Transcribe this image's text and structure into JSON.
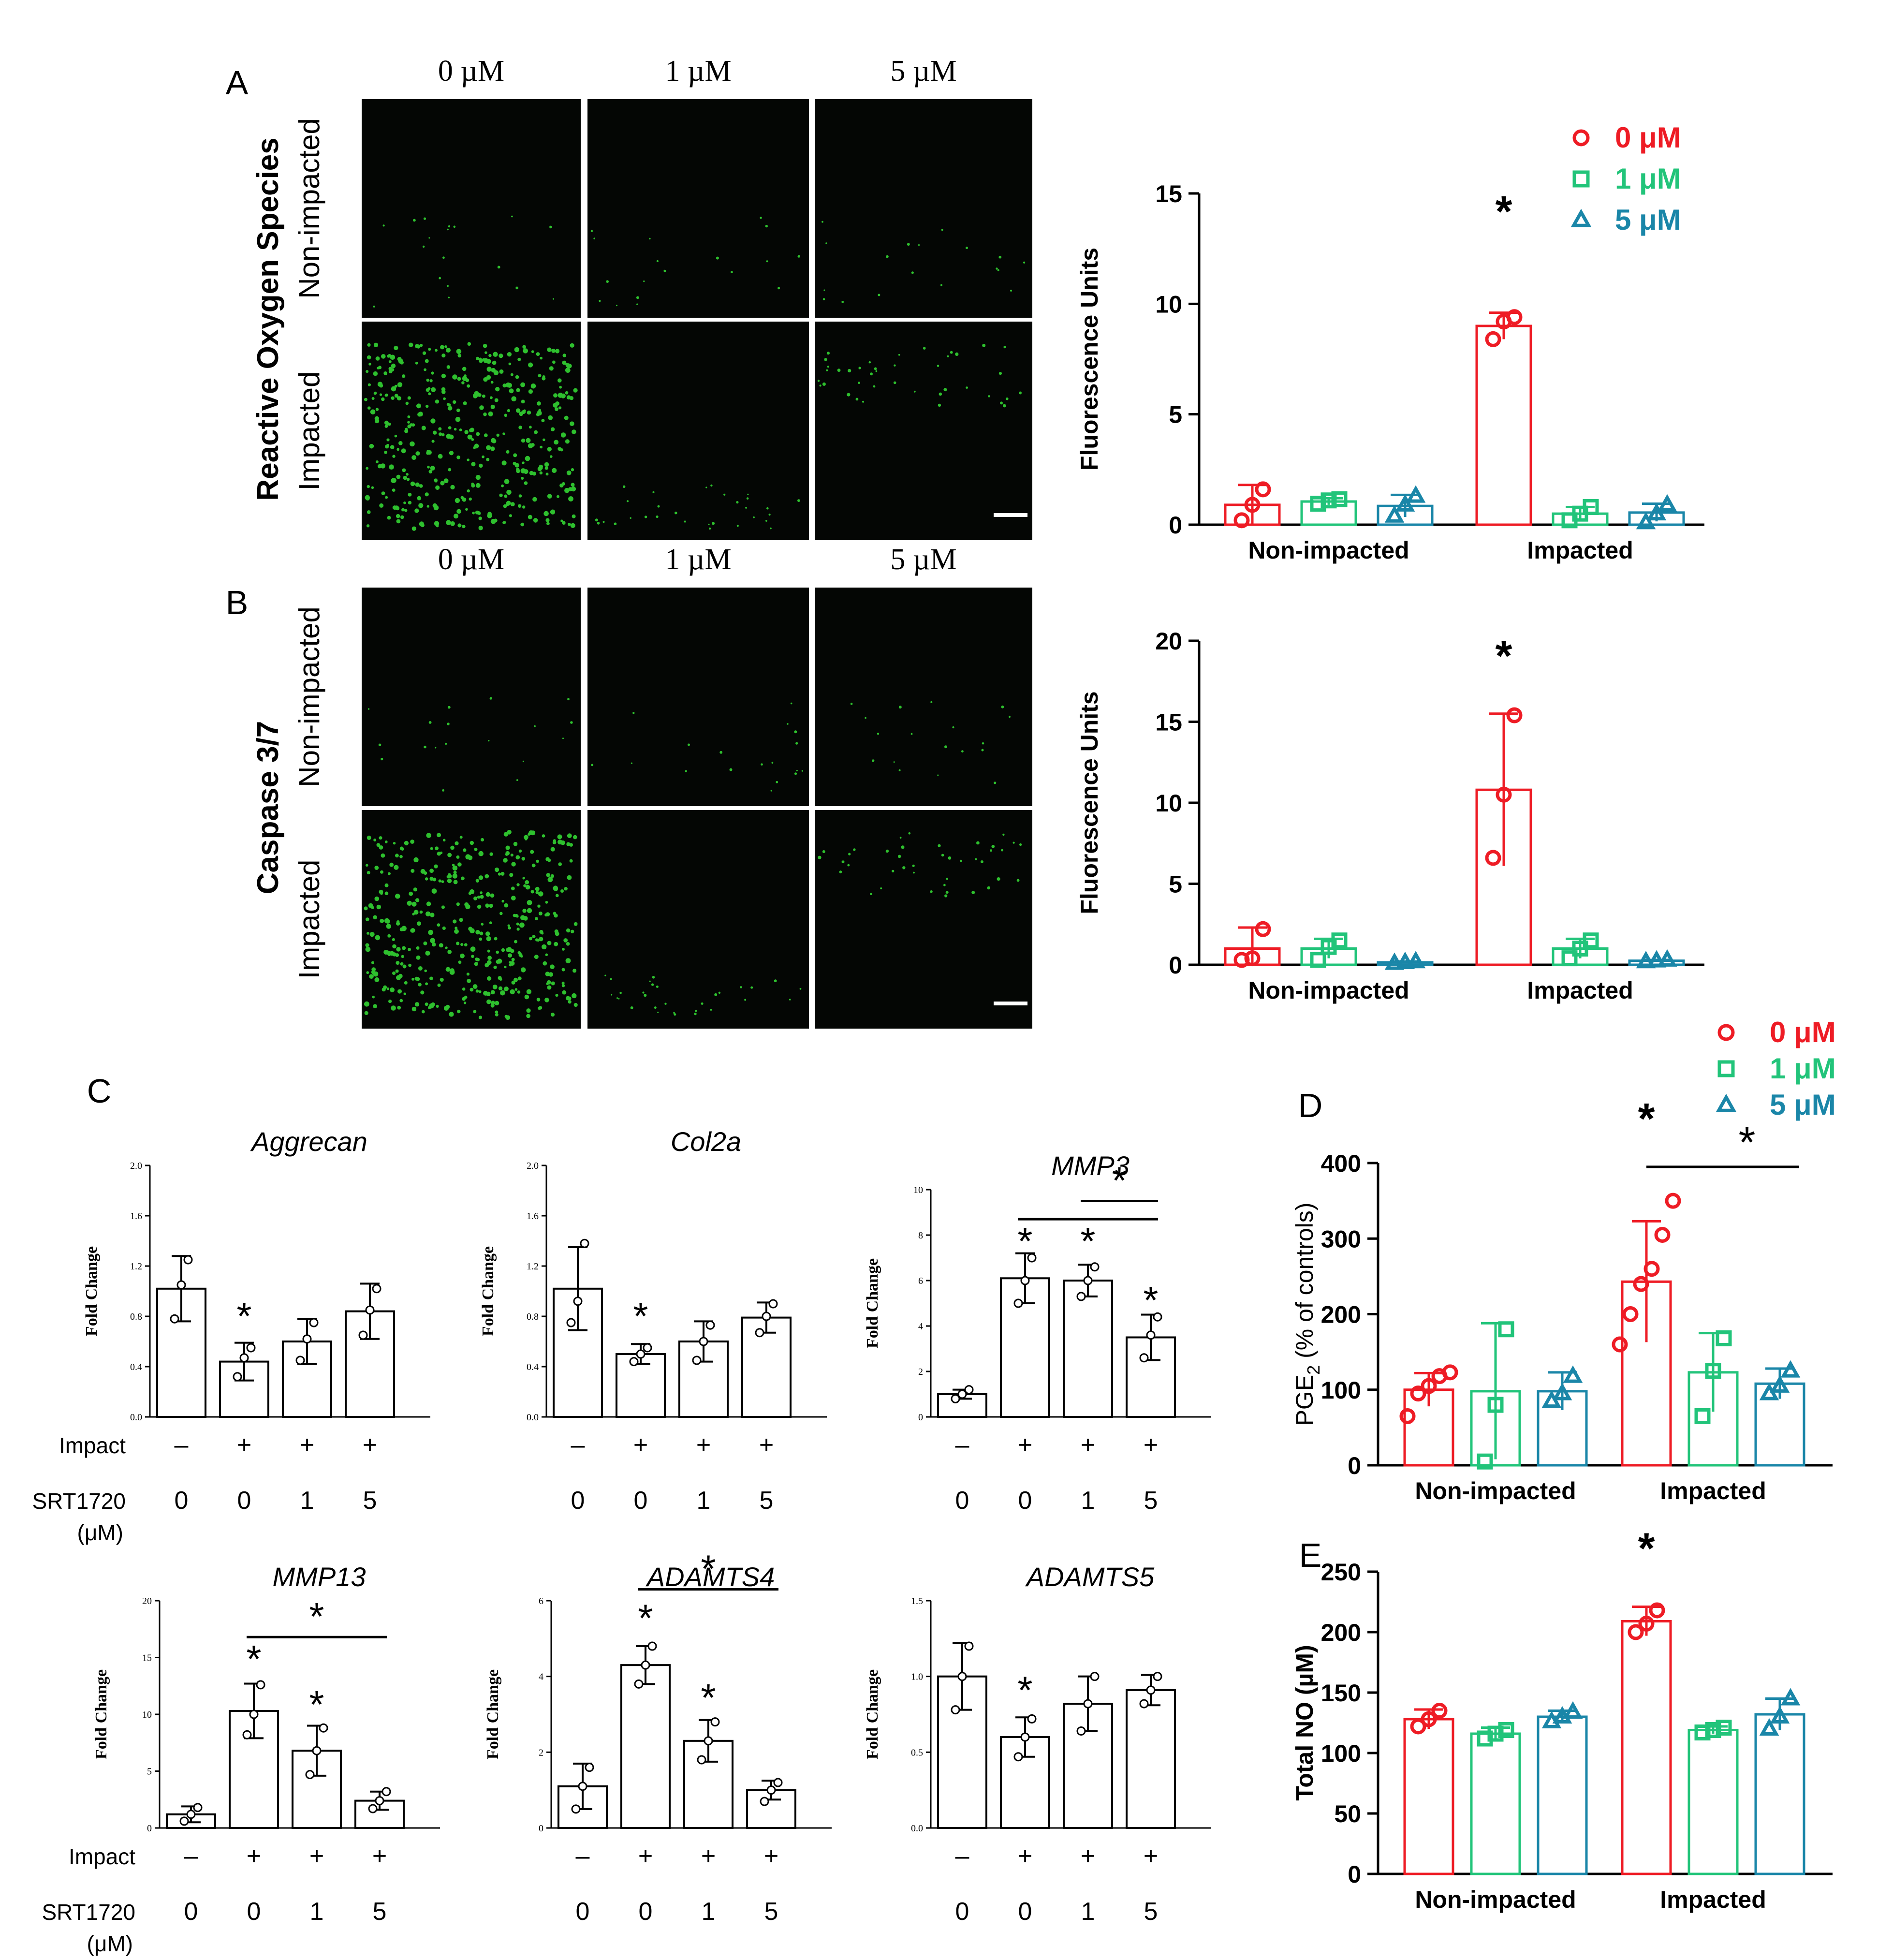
{
  "panel_letters": {
    "a": "A",
    "b": "B",
    "c": "C",
    "d": "D",
    "e": "E"
  },
  "micrographs": {
    "a": {
      "row_group": "Reactive Oxygen Species",
      "rows": [
        "Non-impacted",
        "Impacted"
      ],
      "cols": [
        "0 µM",
        "1 µM",
        "5 µM"
      ]
    },
    "b": {
      "row_group": "Caspase 3/7",
      "rows": [
        "Non-impacted",
        "Impacted"
      ],
      "cols": [
        "0 µM",
        "1 µM",
        "5 µM"
      ]
    }
  },
  "colors": {
    "c0": "#ee1c25",
    "c1": "#22c47a",
    "c5": "#1a86a8",
    "ink": "#000000",
    "cell_bg": "#040604",
    "cell_dot": "#3cff3c"
  },
  "legend_labels": [
    "0 μM",
    "1 μM",
    "5 μM"
  ],
  "x_labels": {
    "impact_row": "Impact",
    "compound_row_l1": "SRT1720",
    "compound_row_l2": "(μM)"
  },
  "chart_data": [
    {
      "id": "A",
      "type": "bar",
      "ylabel": "Fluorescence Units",
      "ylim": [
        0,
        15
      ],
      "yticks": [
        0,
        5,
        10,
        15
      ],
      "groups": [
        "Non-impacted",
        "Impacted"
      ],
      "series": [
        {
          "name": "0 μM",
          "marker": "circle",
          "values": [
            0.9,
            9.0
          ],
          "err": [
            0.9,
            0.6
          ],
          "points": [
            [
              0.2,
              0.9,
              1.6
            ],
            [
              8.4,
              9.2,
              9.4
            ]
          ]
        },
        {
          "name": "1 μM",
          "marker": "square",
          "values": [
            1.05,
            0.5
          ],
          "err": [
            0.15,
            0.3
          ],
          "points": [
            [
              0.95,
              1.1,
              1.15
            ],
            [
              0.2,
              0.5,
              0.8
            ]
          ]
        },
        {
          "name": "5 μM",
          "marker": "triangle",
          "values": [
            0.85,
            0.55
          ],
          "err": [
            0.5,
            0.4
          ],
          "points": [
            [
              0.4,
              0.9,
              1.3
            ],
            [
              0.1,
              0.5,
              0.9
            ]
          ]
        }
      ],
      "stars": [
        {
          "group": 1,
          "series": 0,
          "y": 14.5,
          "label": "*"
        }
      ]
    },
    {
      "id": "B",
      "type": "bar",
      "ylabel": "Fluorescence Units",
      "ylim": [
        0,
        20
      ],
      "yticks": [
        0,
        5,
        10,
        15,
        20
      ],
      "groups": [
        "Non-impacted",
        "Impacted"
      ],
      "series": [
        {
          "name": "0 μM",
          "marker": "circle",
          "values": [
            1.0,
            10.8
          ],
          "err": [
            1.3,
            4.7
          ],
          "points": [
            [
              0.3,
              0.4,
              2.2
            ],
            [
              6.6,
              10.5,
              15.4
            ]
          ]
        },
        {
          "name": "1 μM",
          "marker": "square",
          "values": [
            1.0,
            1.0
          ],
          "err": [
            0.6,
            0.6
          ],
          "points": [
            [
              0.3,
              1.1,
              1.5
            ],
            [
              0.4,
              1.0,
              1.5
            ]
          ]
        },
        {
          "name": "5 μM",
          "marker": "triangle",
          "values": [
            0.15,
            0.25
          ],
          "err": [
            0.05,
            0.05
          ],
          "points": [
            [
              0.1,
              0.15,
              0.2
            ],
            [
              0.2,
              0.25,
              0.3
            ]
          ]
        }
      ],
      "stars": [
        {
          "group": 1,
          "series": 0,
          "y": 19.5,
          "label": "*"
        }
      ]
    },
    {
      "id": "C-Aggrecan",
      "type": "bar",
      "title": "Aggrecan",
      "ylabel": "Fold Change",
      "ylim": [
        0,
        2.0
      ],
      "yticks": [
        0,
        0.4,
        0.8,
        1.2,
        1.6,
        2.0
      ],
      "ytick_labels": [
        "0.0",
        "0.4",
        "0.8",
        "1.2",
        "1.6",
        "2.0"
      ],
      "impact": [
        "–",
        "+",
        "+",
        "+"
      ],
      "srt1720": [
        "0",
        "0",
        "1",
        "5"
      ],
      "values": [
        1.02,
        0.44,
        0.6,
        0.84
      ],
      "err": [
        0.26,
        0.15,
        0.18,
        0.22
      ],
      "points": [
        [
          0.78,
          1.05,
          1.25
        ],
        [
          0.32,
          0.47,
          0.55
        ],
        [
          0.45,
          0.62,
          0.75
        ],
        [
          0.65,
          0.85,
          1.02
        ]
      ],
      "stars": [
        {
          "bar": 1,
          "y": 0.85
        }
      ],
      "brackets": []
    },
    {
      "id": "C-Col2a",
      "type": "bar",
      "title": "Col2a",
      "ylabel": "Fold Change",
      "ylim": [
        0,
        2.0
      ],
      "yticks": [
        0,
        0.4,
        0.8,
        1.2,
        1.6,
        2.0
      ],
      "ytick_labels": [
        "0.0",
        "0.4",
        "0.8",
        "1.2",
        "1.6",
        "2.0"
      ],
      "impact": [
        "–",
        "+",
        "+",
        "+"
      ],
      "srt1720": [
        "0",
        "0",
        "1",
        "5"
      ],
      "values": [
        1.02,
        0.5,
        0.6,
        0.79
      ],
      "err": [
        0.33,
        0.08,
        0.16,
        0.12
      ],
      "points": [
        [
          0.75,
          0.92,
          1.38
        ],
        [
          0.44,
          0.5,
          0.55
        ],
        [
          0.45,
          0.6,
          0.73
        ],
        [
          0.67,
          0.8,
          0.9
        ]
      ],
      "stars": [
        {
          "bar": 1,
          "y": 0.85
        }
      ],
      "brackets": []
    },
    {
      "id": "C-MMP3",
      "type": "bar",
      "title": "MMP3",
      "ylabel": "Fold Change",
      "ylim": [
        0,
        10
      ],
      "yticks": [
        0,
        2,
        4,
        6,
        8,
        10
      ],
      "ytick_labels": [
        "0",
        "2",
        "4",
        "6",
        "8",
        "10"
      ],
      "impact": [
        "–",
        "+",
        "+",
        "+"
      ],
      "srt1720": [
        "0",
        "0",
        "1",
        "5"
      ],
      "values": [
        1.0,
        6.1,
        6.0,
        3.5
      ],
      "err": [
        0.2,
        1.1,
        0.7,
        1.0
      ],
      "points": [
        [
          0.8,
          1.0,
          1.2
        ],
        [
          5.0,
          6.0,
          7.0
        ],
        [
          5.3,
          6.0,
          6.6
        ],
        [
          2.6,
          3.6,
          4.4
        ]
      ],
      "stars": [
        {
          "bar": 1,
          "y": 8.0
        },
        {
          "bar": 2,
          "y": 8.0
        },
        {
          "bar": 3,
          "y": 5.4
        }
      ],
      "brackets": [
        {
          "from": 1,
          "to": 3,
          "y": 8.7
        },
        {
          "from": 2,
          "to": 3,
          "y": 9.5,
          "label": "*"
        }
      ]
    },
    {
      "id": "C-MMP13",
      "type": "bar",
      "title": "MMP13",
      "ylabel": "Fold Change",
      "ylim": [
        0,
        20
      ],
      "yticks": [
        0,
        5,
        10,
        15,
        20
      ],
      "ytick_labels": [
        "0",
        "5",
        "10",
        "15",
        "20"
      ],
      "impact": [
        "–",
        "+",
        "+",
        "+"
      ],
      "srt1720": [
        "0",
        "0",
        "1",
        "5"
      ],
      "values": [
        1.2,
        10.3,
        6.8,
        2.4
      ],
      "err": [
        0.7,
        2.4,
        2.2,
        0.8
      ],
      "points": [
        [
          0.6,
          1.2,
          1.8
        ],
        [
          8.2,
          10.0,
          12.6
        ],
        [
          4.7,
          6.8,
          8.8
        ],
        [
          1.7,
          2.4,
          3.2
        ]
      ],
      "stars": [
        {
          "bar": 1,
          "y": 15.4
        },
        {
          "bar": 2,
          "y": 11.4
        }
      ],
      "brackets": [
        {
          "from": 1,
          "to": 3,
          "y": 16.8,
          "label": "*"
        }
      ]
    },
    {
      "id": "C-ADAMTS4",
      "type": "bar",
      "title": "ADAMTS4",
      "ylabel": "Fold Change",
      "ylim": [
        0,
        6
      ],
      "yticks": [
        0,
        2,
        4,
        6
      ],
      "ytick_labels": [
        "0",
        "2",
        "4",
        "6"
      ],
      "impact": [
        "–",
        "+",
        "+",
        "+"
      ],
      "srt1720": [
        "0",
        "0",
        "1",
        "5"
      ],
      "values": [
        1.1,
        4.3,
        2.3,
        1.0
      ],
      "err": [
        0.6,
        0.5,
        0.55,
        0.25
      ],
      "points": [
        [
          0.5,
          1.1,
          1.6
        ],
        [
          3.8,
          4.3,
          4.8
        ],
        [
          1.8,
          2.3,
          2.8
        ],
        [
          0.7,
          1.0,
          1.2
        ]
      ],
      "stars": [
        {
          "bar": 1,
          "y": 5.7
        },
        {
          "bar": 2,
          "y": 3.6
        }
      ],
      "brackets": [
        {
          "from": 1,
          "to": 3,
          "y": 6.3,
          "label": "*"
        }
      ]
    },
    {
      "id": "C-ADAMTS5",
      "type": "bar",
      "title": "ADAMTS5",
      "ylabel": "Fold Change",
      "ylim": [
        0,
        1.5
      ],
      "yticks": [
        0,
        0.5,
        1.0,
        1.5
      ],
      "ytick_labels": [
        "0.0",
        "0.5",
        "1.0",
        "1.5"
      ],
      "impact": [
        "–",
        "+",
        "+",
        "+"
      ],
      "srt1720": [
        "0",
        "0",
        "1",
        "5"
      ],
      "values": [
        1.0,
        0.6,
        0.82,
        0.91
      ],
      "err": [
        0.22,
        0.13,
        0.18,
        0.1
      ],
      "points": [
        [
          0.78,
          1.0,
          1.2
        ],
        [
          0.47,
          0.6,
          0.72
        ],
        [
          0.64,
          0.82,
          1.0
        ],
        [
          0.82,
          0.91,
          1.0
        ]
      ],
      "stars": [
        {
          "bar": 1,
          "y": 0.95
        }
      ],
      "brackets": []
    },
    {
      "id": "D",
      "type": "bar",
      "ylabel_base": "PGE",
      "ylabel_sub": "2",
      "ylabel_rest": " (% of controls)",
      "ylim": [
        0,
        400
      ],
      "yticks": [
        0,
        100,
        200,
        300,
        400
      ],
      "groups": [
        "Non-impacted",
        "Impacted"
      ],
      "series": [
        {
          "name": "0 μM",
          "marker": "circle",
          "values": [
            100,
            243
          ],
          "err": [
            22,
            80
          ],
          "points": [
            [
              65,
              95,
              105,
              118,
              123
            ],
            [
              160,
              200,
              240,
              260,
              305,
              350
            ]
          ]
        },
        {
          "name": "1 μM",
          "marker": "square",
          "values": [
            98,
            123
          ],
          "err": [
            90,
            52
          ],
          "points": [
            [
              5,
              80,
              180
            ],
            [
              65,
              125,
              168
            ]
          ]
        },
        {
          "name": "5 μM",
          "marker": "triangle",
          "values": [
            98,
            108
          ],
          "err": [
            25,
            20
          ],
          "points": [
            [
              85,
              95,
              118
            ],
            [
              95,
              105,
              125
            ]
          ]
        }
      ],
      "stars": [
        {
          "group": 1,
          "series": 0,
          "y": 468
        }
      ],
      "brackets": [
        {
          "group": 1,
          "from": 0,
          "to": 2,
          "y": 395,
          "label": "*"
        }
      ]
    },
    {
      "id": "E",
      "type": "bar",
      "ylabel": "Total NO (µM)",
      "ylim": [
        0,
        250
      ],
      "yticks": [
        0,
        50,
        100,
        150,
        200,
        250
      ],
      "groups": [
        "Non-impacted",
        "Impacted"
      ],
      "series": [
        {
          "name": "0 μM",
          "marker": "circle",
          "values": [
            128,
            209
          ],
          "err": [
            8,
            12
          ],
          "points": [
            [
              122,
              128,
              135
            ],
            [
              200,
              207,
              218
            ]
          ]
        },
        {
          "name": "1 μM",
          "marker": "square",
          "values": [
            116,
            119
          ],
          "err": [
            5,
            3
          ],
          "points": [
            [
              112,
              116,
              119
            ],
            [
              117,
              119,
              121
            ]
          ]
        },
        {
          "name": "5 μM",
          "marker": "triangle",
          "values": [
            130,
            132
          ],
          "err": [
            5,
            13
          ],
          "points": [
            [
              126,
              130,
              134
            ],
            [
              120,
              130,
              145
            ]
          ]
        }
      ],
      "stars": [
        {
          "group": 1,
          "series": 0,
          "y": 275
        }
      ]
    }
  ]
}
